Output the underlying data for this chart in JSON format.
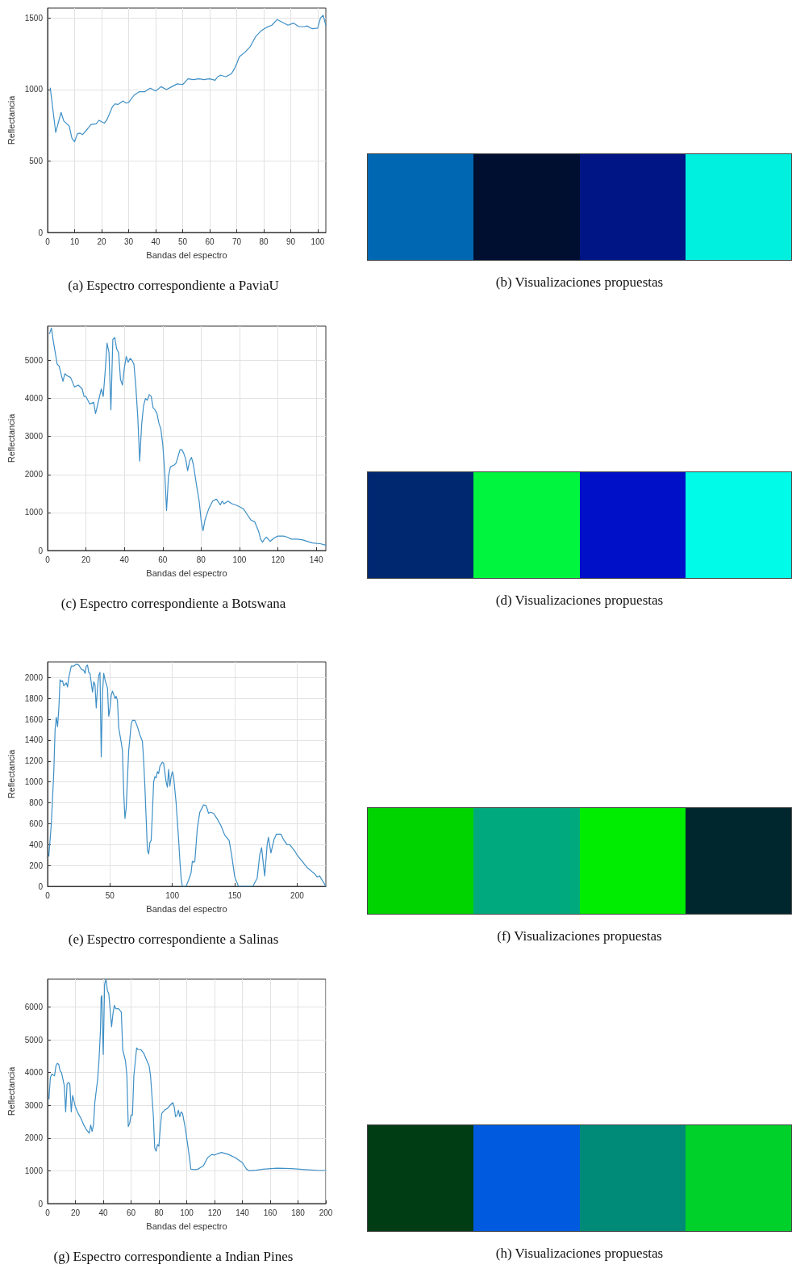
{
  "chart_data": [
    {
      "type": "line",
      "title": "(a) Espectro correspondiente a PaviaU",
      "xlabel": "Bandas del espectro",
      "ylabel": "Reflectancia",
      "xlim": [
        0,
        103
      ],
      "ylim": [
        0,
        1570
      ],
      "xticks": [
        0,
        10,
        20,
        30,
        40,
        50,
        60,
        70,
        80,
        90,
        100
      ],
      "yticks": [
        0,
        500,
        1000,
        1500
      ],
      "grid": true,
      "marker": "none",
      "line_style": "solid",
      "series": [
        {
          "color": "#3d8fc6",
          "x": [
            1,
            3,
            5,
            6,
            8,
            9,
            10,
            11,
            12,
            13,
            15,
            16,
            18,
            19,
            21,
            22,
            24,
            25,
            26,
            28,
            29,
            30,
            32,
            34,
            36,
            38,
            40,
            42,
            44,
            46,
            48,
            50,
            52,
            54,
            56,
            58,
            60,
            62,
            63,
            64,
            66,
            68,
            69,
            70,
            71,
            73,
            75,
            77,
            79,
            81,
            83,
            85,
            87,
            89,
            91,
            93,
            95,
            96,
            98,
            100,
            101,
            102,
            103
          ],
          "values": [
            1010,
            700,
            840,
            780,
            745,
            660,
            635,
            690,
            695,
            685,
            730,
            755,
            760,
            785,
            765,
            790,
            880,
            900,
            895,
            920,
            905,
            910,
            960,
            985,
            985,
            1010,
            990,
            1020,
            1000,
            1020,
            1040,
            1035,
            1075,
            1070,
            1075,
            1070,
            1075,
            1065,
            1090,
            1100,
            1090,
            1110,
            1140,
            1180,
            1230,
            1260,
            1300,
            1370,
            1410,
            1435,
            1450,
            1490,
            1470,
            1450,
            1465,
            1440,
            1440,
            1445,
            1425,
            1430,
            1500,
            1520,
            1450
          ]
        }
      ]
    },
    {
      "type": "other",
      "title": "(b) Visualizaciones propuestas",
      "colors": [
        "#0068b2",
        "#000e30",
        "#001585",
        "#00f0e0"
      ]
    },
    {
      "type": "line",
      "title": "(c) Espectro correspondiente a Botswana",
      "xlabel": "Bandas del espectro",
      "ylabel": "Reflectancia",
      "xlim": [
        0,
        145
      ],
      "ylim": [
        0,
        5900
      ],
      "xticks": [
        0,
        20,
        40,
        60,
        80,
        100,
        120,
        140
      ],
      "yticks": [
        0,
        1000,
        2000,
        3000,
        4000,
        5000
      ],
      "grid": true,
      "marker": "none",
      "line_style": "solid",
      "series": [
        {
          "color": "#3d8fc6",
          "x": [
            1,
            2,
            3,
            5,
            6,
            8,
            9,
            10,
            12,
            14,
            16,
            18,
            19,
            20,
            22,
            24,
            25,
            28,
            29,
            30,
            31,
            32,
            33,
            34,
            35,
            36,
            37,
            38,
            39,
            40,
            41,
            42,
            43,
            44,
            45,
            46,
            47,
            48,
            49,
            50,
            51,
            52,
            53,
            54,
            55,
            56,
            57,
            58,
            59,
            60,
            61,
            62,
            63,
            64,
            66,
            67,
            69,
            70,
            71,
            72,
            73,
            74,
            75,
            76,
            78,
            79,
            80,
            81,
            82,
            84,
            86,
            88,
            90,
            91,
            92,
            94,
            96,
            98,
            100,
            102,
            104,
            106,
            108,
            110,
            111,
            112,
            113,
            114,
            115,
            116,
            118,
            120,
            123,
            125,
            127,
            130,
            133,
            136,
            138,
            142,
            145
          ],
          "values": [
            5700,
            5850,
            5500,
            4900,
            4850,
            4450,
            4650,
            4600,
            4550,
            4300,
            4350,
            4250,
            4050,
            4050,
            3850,
            3900,
            3600,
            4250,
            4050,
            4700,
            5450,
            5200,
            3700,
            5550,
            5600,
            5300,
            5200,
            4500,
            4350,
            4800,
            5100,
            4950,
            5050,
            5000,
            4900,
            4300,
            3500,
            2350,
            3300,
            3800,
            4000,
            3950,
            4100,
            4050,
            3750,
            3700,
            3600,
            3350,
            3200,
            2800,
            2100,
            1050,
            1950,
            2200,
            2250,
            2300,
            2650,
            2650,
            2550,
            2400,
            2100,
            2350,
            2450,
            2250,
            1600,
            1300,
            800,
            520,
            800,
            1100,
            1300,
            1350,
            1200,
            1300,
            1230,
            1300,
            1230,
            1200,
            1150,
            1100,
            950,
            800,
            750,
            500,
            300,
            220,
            300,
            350,
            300,
            240,
            330,
            380,
            380,
            350,
            300,
            300,
            280,
            230,
            200,
            180,
            140
          ]
        }
      ]
    },
    {
      "type": "other",
      "title": "(d) Visualizaciones propuestas",
      "colors": [
        "#002870",
        "#00f53f",
        "#0010c8",
        "#00fbe8"
      ]
    },
    {
      "type": "line",
      "title": "(e) Espectro correspondiente a Salinas",
      "xlabel": "Bandas del espectro",
      "ylabel": "Reflectancia",
      "xlim": [
        0,
        223
      ],
      "ylim": [
        0,
        2150
      ],
      "xticks": [
        0,
        50,
        100,
        150,
        200
      ],
      "yticks": [
        0,
        200,
        400,
        600,
        800,
        1000,
        1200,
        1400,
        1600,
        1800,
        2000
      ],
      "grid": true,
      "marker": "none",
      "line_style": "solid",
      "series": [
        {
          "color": "#3d8fc6",
          "x": [
            1,
            3,
            5,
            6,
            7,
            8,
            9,
            10,
            11,
            12,
            13,
            15,
            16,
            17,
            19,
            21,
            23,
            25,
            27,
            29,
            30,
            31,
            32,
            33,
            34,
            35,
            36,
            37,
            38,
            39,
            40,
            41,
            42,
            43,
            44,
            45,
            46,
            48,
            49,
            50,
            51,
            52,
            53,
            54,
            55,
            56,
            57,
            59,
            60,
            61,
            62,
            63,
            65,
            67,
            68,
            70,
            72,
            74,
            76,
            77,
            78,
            79,
            80,
            81,
            82,
            83,
            84,
            85,
            86,
            87,
            88,
            89,
            90,
            92,
            93,
            94,
            95,
            96,
            97,
            98,
            99,
            100,
            101,
            103,
            105,
            106,
            107,
            108,
            111,
            113,
            115,
            116,
            117,
            118,
            120,
            122,
            125,
            127,
            129,
            130.5,
            133,
            136,
            139,
            142,
            145.5,
            147.5,
            150,
            152,
            153,
            164.5,
            168,
            170,
            171.5,
            174,
            176,
            177,
            179,
            181.5,
            183.5,
            187,
            189,
            192,
            194,
            196,
            198,
            200,
            202,
            204,
            206,
            208,
            210,
            212,
            214,
            216,
            218,
            220,
            222,
            223
          ],
          "values": [
            290,
            600,
            1100,
            1500,
            1620,
            1530,
            1700,
            1980,
            1960,
            1970,
            1920,
            1950,
            1910,
            2000,
            2110,
            2110,
            2130,
            2120,
            2080,
            2070,
            2040,
            2110,
            2120,
            2050,
            2040,
            1950,
            1860,
            1960,
            1930,
            1710,
            1900,
            2020,
            2050,
            1240,
            1850,
            2040,
            1980,
            1900,
            1630,
            1700,
            1830,
            1870,
            1840,
            1800,
            1820,
            1780,
            1520,
            1380,
            1300,
            900,
            650,
            750,
            1300,
            1550,
            1590,
            1590,
            1530,
            1450,
            1390,
            1200,
            950,
            650,
            350,
            310,
            420,
            440,
            700,
            1000,
            1050,
            1040,
            1100,
            1080,
            1150,
            1190,
            1180,
            1090,
            1000,
            950,
            1120,
            960,
            1050,
            1100,
            1050,
            800,
            450,
            250,
            80,
            0,
            0,
            60,
            130,
            240,
            230,
            240,
            555,
            710,
            780,
            775,
            700,
            710,
            700,
            645,
            580,
            490,
            440,
            300,
            90,
            30,
            0,
            0,
            80,
            300,
            370,
            100,
            400,
            470,
            320,
            450,
            500,
            500,
            450,
            400,
            400,
            370,
            340,
            300,
            270,
            240,
            210,
            180,
            160,
            140,
            120,
            90,
            100,
            60,
            20,
            0
          ]
        }
      ]
    },
    {
      "type": "other",
      "title": "(f) Visualizaciones propuestas",
      "colors": [
        "#00d400",
        "#00aa7e",
        "#00ec00",
        "#00262e"
      ]
    },
    {
      "type": "line",
      "title": "(g) Espectro correspondiente a Indian Pines",
      "xlabel": "Bandas del espectro",
      "ylabel": "Reflectancia",
      "xlim": [
        0,
        200
      ],
      "ylim": [
        0,
        6850
      ],
      "xticks": [
        0,
        20,
        40,
        60,
        80,
        100,
        120,
        140,
        160,
        180,
        200
      ],
      "yticks": [
        0,
        1000,
        2000,
        3000,
        4000,
        5000,
        6000
      ],
      "grid": true,
      "marker": "none",
      "line_style": "solid",
      "series": [
        {
          "color": "#3d8fc6",
          "x": [
            1,
            2,
            3,
            5,
            6,
            7,
            8,
            9,
            10,
            12,
            13,
            14,
            15,
            16,
            17,
            18,
            20,
            22,
            24,
            26,
            28,
            30,
            31,
            32,
            33,
            34,
            36,
            37,
            38,
            38.5,
            39,
            40,
            41,
            42,
            43,
            44,
            45,
            46,
            47,
            48,
            49,
            51,
            53,
            54,
            56,
            57,
            58,
            59,
            60,
            61,
            62,
            64,
            65,
            67,
            69,
            71,
            73,
            74,
            76,
            77,
            78,
            79,
            80,
            81,
            82,
            84,
            86,
            88,
            90,
            91,
            92,
            93,
            94,
            95,
            96,
            97,
            99,
            100,
            102,
            103,
            106,
            108,
            110,
            112,
            115,
            118,
            120,
            122,
            125,
            130,
            135,
            140,
            143,
            145,
            150,
            155,
            165,
            175,
            185,
            195,
            200
          ],
          "values": [
            3200,
            3850,
            3950,
            3900,
            4200,
            4280,
            4250,
            4050,
            4000,
            3600,
            2800,
            3650,
            3700,
            3650,
            2800,
            3300,
            2950,
            2750,
            2600,
            2400,
            2250,
            2150,
            2400,
            2200,
            2400,
            3100,
            3800,
            4400,
            5300,
            6300,
            6350,
            4550,
            6700,
            6850,
            6500,
            6400,
            5900,
            5400,
            5800,
            6050,
            5950,
            5950,
            5850,
            4700,
            4350,
            3900,
            2350,
            2450,
            2700,
            2700,
            3900,
            4750,
            4700,
            4700,
            4600,
            4400,
            4200,
            3900,
            2700,
            1700,
            1600,
            1800,
            1750,
            2300,
            2750,
            2850,
            2900,
            3000,
            3080,
            2950,
            2650,
            2700,
            2850,
            2650,
            2800,
            2750,
            2300,
            2000,
            1400,
            1050,
            1040,
            1050,
            1100,
            1150,
            1400,
            1500,
            1480,
            1520,
            1560,
            1500,
            1400,
            1250,
            1050,
            1000,
            1020,
            1050,
            1080,
            1070,
            1040,
            1010,
            1010
          ]
        }
      ]
    },
    {
      "type": "other",
      "title": "(h) Visualizaciones propuestas",
      "colors": [
        "#003c14",
        "#005ae0",
        "#008a78",
        "#00d12a"
      ]
    }
  ]
}
